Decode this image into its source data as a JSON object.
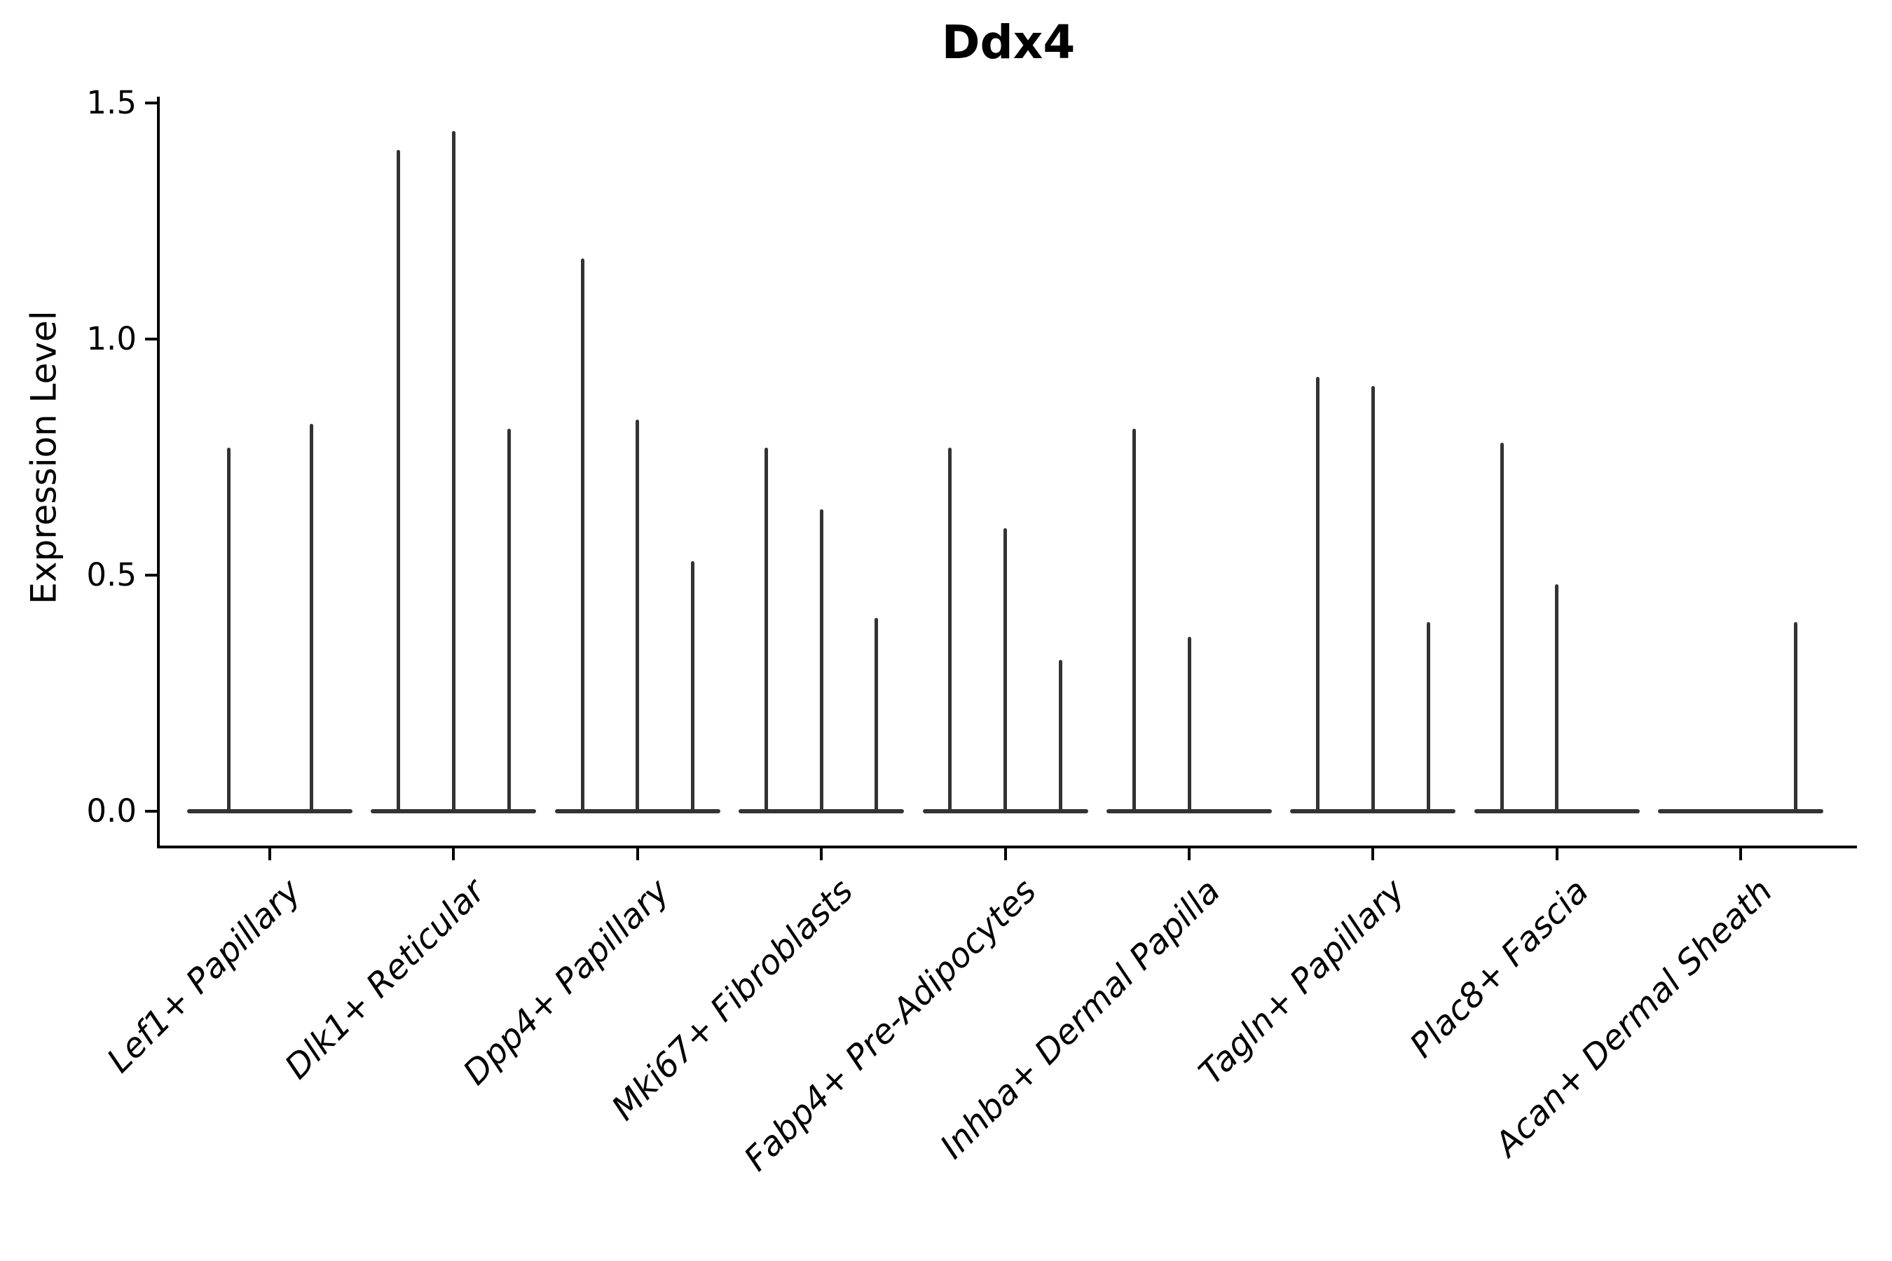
{
  "chart_data": {
    "type": "violin",
    "title": "Ddx4",
    "ylabel": "Expression Level",
    "xlabel": "",
    "ylim": [
      0,
      1.5
    ],
    "ytick_labels": [
      "0.0",
      "0.5",
      "1.0",
      "1.5"
    ],
    "ytick_values": [
      0.0,
      0.5,
      1.0,
      1.5
    ],
    "grid": false,
    "legend": "none",
    "line_color": "#333333",
    "axis_color": "#000000",
    "xtick_label_style": "italic, rotated 45 degrees",
    "categories": [
      "Lef1+ Papillary",
      "Dlk1+ Reticular",
      "Dpp4+ Papillary",
      "Mki67+ Fibroblasts",
      "Fabp4+ Pre-Adipocytes",
      "Inhba+ Dermal Papilla",
      "Tagln+ Papillary",
      "Plac8+ Fascia",
      "Acan+ Dermal Sheath"
    ],
    "violins": [
      {
        "category": "Lef1+ Papillary",
        "slots": 2,
        "max_values": [
          0.77,
          0.82
        ]
      },
      {
        "category": "Dlk1+ Reticular",
        "slots": 3,
        "max_values": [
          1.4,
          1.44,
          0.81
        ]
      },
      {
        "category": "Dpp4+ Papillary",
        "slots": 3,
        "max_values": [
          1.17,
          0.83,
          0.53
        ]
      },
      {
        "category": "Mki67+ Fibroblasts",
        "slots": 3,
        "max_values": [
          0.77,
          0.64,
          0.41
        ]
      },
      {
        "category": "Fabp4+ Pre-Adipocytes",
        "slots": 3,
        "max_values": [
          0.77,
          0.6,
          0.32
        ]
      },
      {
        "category": "Inhba+ Dermal Papilla",
        "slots": 3,
        "max_values": [
          0.81,
          0.37,
          null
        ]
      },
      {
        "category": "Tagln+ Papillary",
        "slots": 3,
        "max_values": [
          0.92,
          0.9,
          0.4
        ]
      },
      {
        "category": "Plac8+ Fascia",
        "slots": 3,
        "max_values": [
          0.78,
          0.48,
          null
        ]
      },
      {
        "category": "Acan+ Dermal Sheath",
        "slots": 3,
        "max_values": [
          null,
          null,
          0.4
        ]
      }
    ],
    "description": "Each category shows violins collapsed flat at 0 with thin spikes reaching the maximum expression value."
  }
}
